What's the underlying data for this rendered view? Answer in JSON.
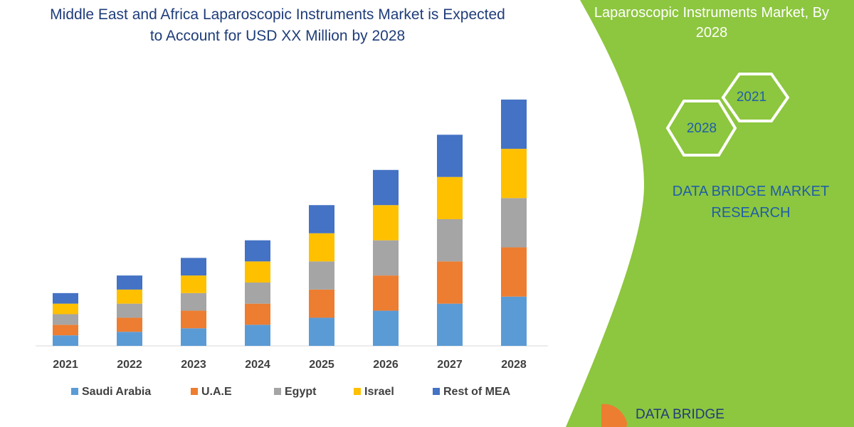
{
  "chart_data": {
    "type": "bar",
    "stacked": true,
    "title": "Middle East and Africa Laparoscopic Instruments Market is Expected to Account for USD XX Million by 2028",
    "categories": [
      "2021",
      "2022",
      "2023",
      "2024",
      "2025",
      "2026",
      "2027",
      "2028"
    ],
    "series": [
      {
        "name": "Saudi Arabia",
        "color": "#5b9bd5",
        "values": [
          15,
          20,
          25,
          30,
          40,
          50,
          60,
          70
        ]
      },
      {
        "name": "U.A.E",
        "color": "#ed7d31",
        "values": [
          15,
          20,
          25,
          30,
          40,
          50,
          60,
          70
        ]
      },
      {
        "name": "Egypt",
        "color": "#a5a5a5",
        "values": [
          15,
          20,
          25,
          30,
          40,
          50,
          60,
          70
        ]
      },
      {
        "name": "Israel",
        "color": "#ffc000",
        "values": [
          15,
          20,
          25,
          30,
          40,
          50,
          60,
          70
        ]
      },
      {
        "name": "Rest of MEA",
        "color": "#4472c4",
        "values": [
          15,
          20,
          25,
          30,
          40,
          50,
          60,
          70
        ]
      }
    ],
    "ylim": [
      0,
      360
    ],
    "legend": "bottom"
  },
  "panel": {
    "title": "Laparoscopic Instruments Market, By 2028",
    "hexagons": [
      "2021",
      "2028"
    ],
    "brand": "DATA BRIDGE MARKET RESEARCH",
    "logo": "DATA BRIDGE"
  }
}
